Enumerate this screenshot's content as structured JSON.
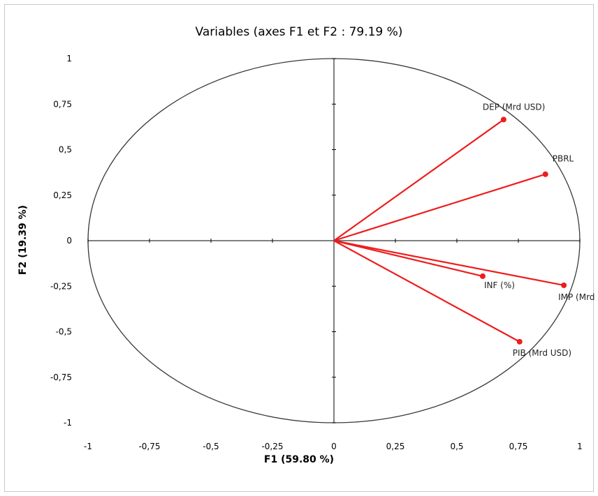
{
  "chart_data": {
    "type": "scatter",
    "title": "Variables (axes F1 et F2 : 79.19 %)",
    "xlabel": "F1 (59.80 %)",
    "ylabel": "F2 (19.39 %)",
    "xlim": [
      -1,
      1
    ],
    "ylim": [
      -1,
      1
    ],
    "xticks": [
      "-1",
      "-0,75",
      "-0,5",
      "-0,25",
      "0",
      "0,25",
      "0,5",
      "0,75",
      "1"
    ],
    "yticks": [
      "1",
      "0,75",
      "0,5",
      "0,25",
      "0",
      "-0,25",
      "-0,5",
      "-0,75",
      "-1"
    ],
    "points": [
      {
        "label": "DEP (Mrd USD)",
        "x": 0.69,
        "y": 0.665
      },
      {
        "label": "PBRL",
        "x": 0.86,
        "y": 0.365
      },
      {
        "label": "INF (%)",
        "x": 0.605,
        "y": -0.195
      },
      {
        "label": "IMP (Mrd USD)",
        "x": 0.935,
        "y": -0.245
      },
      {
        "label": "PIB (Mrd USD)",
        "x": 0.755,
        "y": -0.555
      }
    ],
    "unit_circle": true,
    "colors": {
      "vector": "#ee1c1c",
      "axis": "#000000",
      "circle": "#3a3a3a"
    }
  }
}
